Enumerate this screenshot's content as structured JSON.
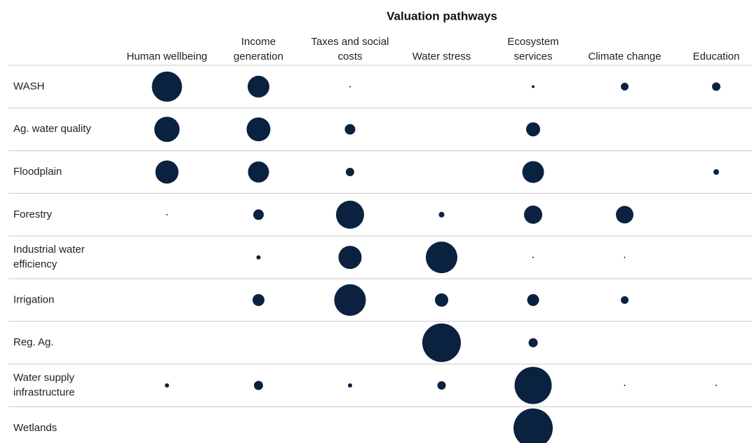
{
  "chart_data": {
    "type": "bubble-matrix",
    "title": "Valuation pathways",
    "color": "#0a2240",
    "columns": [
      [
        "Human wellbeing"
      ],
      [
        "Income",
        "generation"
      ],
      [
        "Taxes and social",
        "costs"
      ],
      [
        "Water stress"
      ],
      [
        "Ecosystem",
        "services"
      ],
      [
        "Climate change"
      ],
      [
        "Education"
      ]
    ],
    "rows": [
      {
        "name": [
          "WASH"
        ],
        "values": [
          43,
          31,
          2,
          null,
          4,
          11,
          12
        ]
      },
      {
        "name": [
          "Ag. water quality"
        ],
        "values": [
          36,
          34,
          15,
          null,
          20,
          null,
          null
        ]
      },
      {
        "name": [
          "Floodplain"
        ],
        "values": [
          33,
          30,
          12,
          null,
          31,
          null,
          8
        ]
      },
      {
        "name": [
          "Forestry"
        ],
        "values": [
          2,
          15,
          40,
          8,
          26,
          25,
          null
        ]
      },
      {
        "name": [
          "Industrial water",
          "efficiency"
        ],
        "values": [
          null,
          6,
          33,
          45,
          2,
          2,
          null
        ]
      },
      {
        "name": [
          "Irrigation"
        ],
        "values": [
          null,
          17,
          45,
          19,
          17,
          11,
          null
        ]
      },
      {
        "name": [
          "Reg. Ag."
        ],
        "values": [
          null,
          null,
          null,
          55,
          13,
          null,
          null
        ]
      },
      {
        "name": [
          "Water supply",
          "infrastructure"
        ],
        "values": [
          6,
          13,
          6,
          12,
          53,
          2,
          2
        ]
      },
      {
        "name": [
          "Wetlands"
        ],
        "values": [
          null,
          null,
          null,
          null,
          56,
          null,
          null
        ]
      }
    ]
  }
}
